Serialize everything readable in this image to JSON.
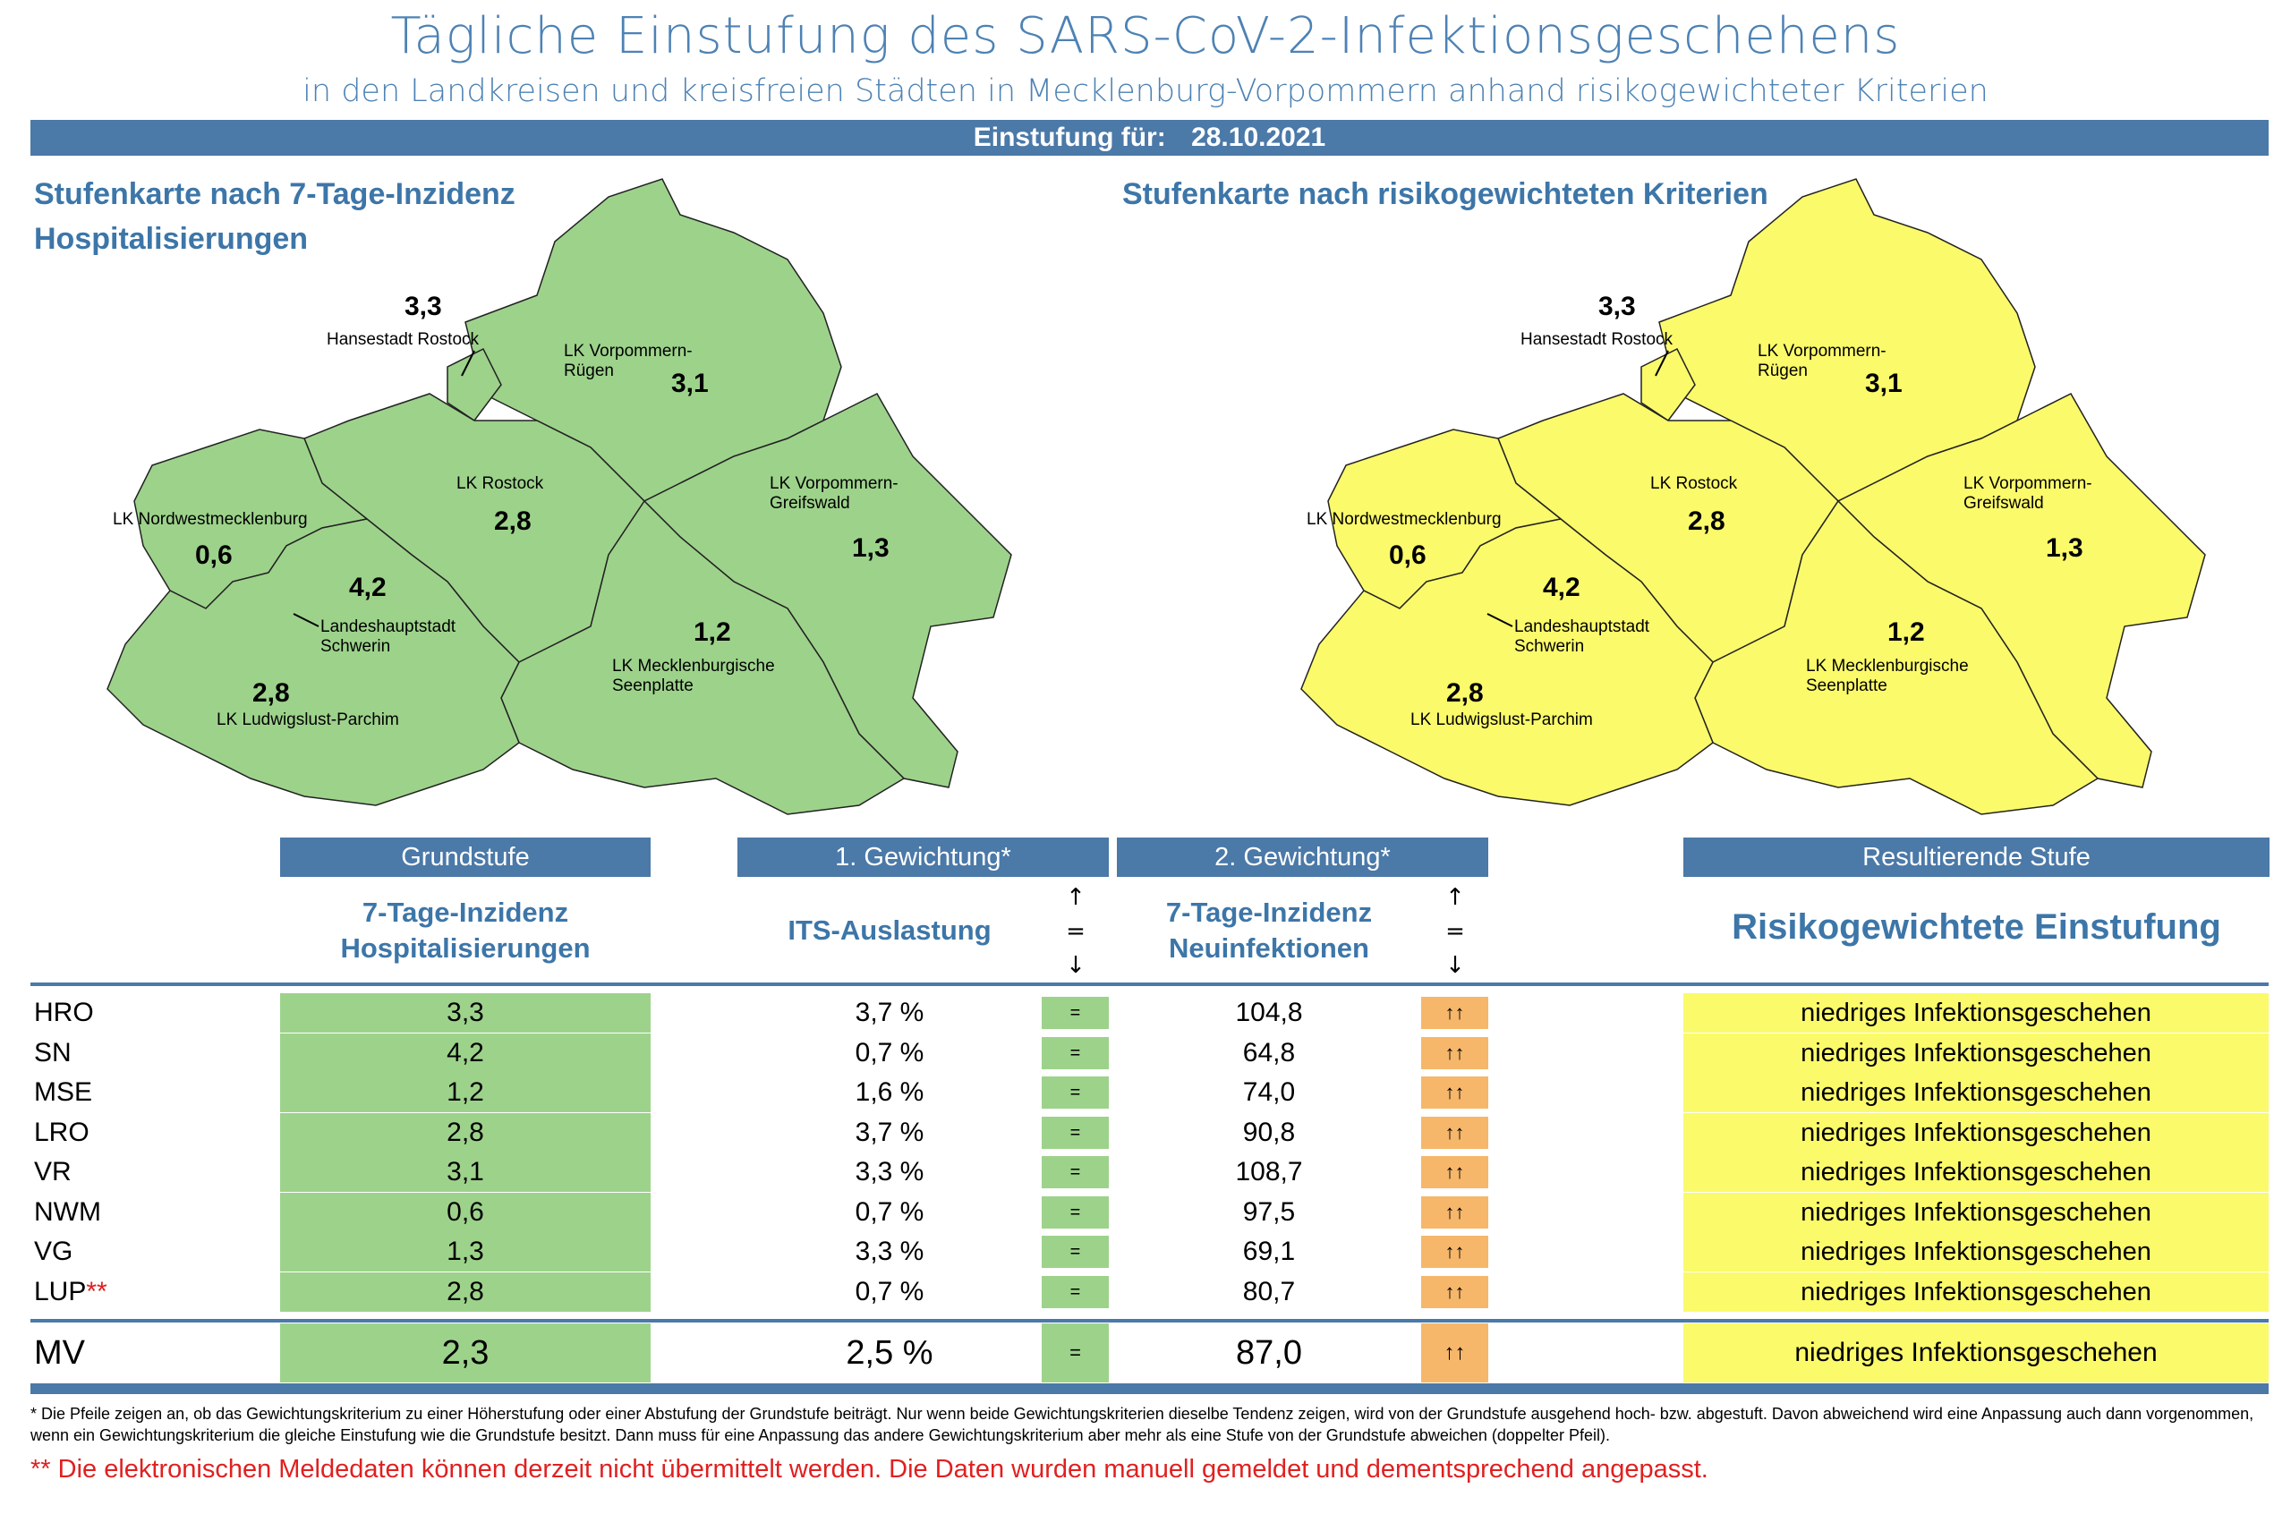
{
  "header": {
    "title": "Tägliche Einstufung des SARS-CoV-2-Infektionsgeschehens",
    "subtitle": "in den Landkreisen und kreisfreien Städten in Mecklenburg-Vorpommern anhand risikogewichteter Kriterien",
    "date_label": "Einstufung für:",
    "date": "28.10.2021"
  },
  "map_left": {
    "title_line1": "Stufenkarte nach 7-Tage-Inzidenz",
    "title_line2": "Hospitalisierungen",
    "fill": "#9dd28b"
  },
  "map_right": {
    "title": "Stufenkarte nach risikogewichteten Kriterien",
    "fill": "#fbfa6b"
  },
  "map_labels": {
    "hro_name": "Hansestadt Rostock",
    "hro_val": "3,3",
    "vr_name1": "LK Vorpommern-",
    "vr_name2": "Rügen",
    "vr_val": "3,1",
    "lro_name": "LK Rostock",
    "lro_val": "2,8",
    "vg_name1": "LK Vorpommern-",
    "vg_name2": "Greifswald",
    "vg_val": "1,3",
    "nwm_name": "LK Nordwestmecklenburg",
    "nwm_val": "0,6",
    "sn_name1": "Landeshauptstadt",
    "sn_name2": "Schwerin",
    "sn_val": "4,2",
    "mse_name1": "LK Mecklenburgische",
    "mse_name2": "Seenplatte",
    "mse_val": "1,2",
    "lup_name": "LK Ludwigslust-Parchim",
    "lup_val": "2,8"
  },
  "table": {
    "group_headers": {
      "grundstufe": "Grundstufe",
      "gew1": "1. Gewichtung*",
      "gew2": "2. Gewichtung*",
      "result": "Resultierende Stufe"
    },
    "col_headers": {
      "hosp_line1": "7-Tage-Inzidenz",
      "hosp_line2": "Hospitalisierungen",
      "its": "ITS-Auslastung",
      "neu_line1": "7-Tage-Inzidenz",
      "neu_line2": "Neuinfektionen",
      "result": "Risikogewichtete Einstufung",
      "arrow_up": "↑",
      "arrow_eq": "=",
      "arrow_down": "↓"
    },
    "rows": [
      {
        "code": "HRO",
        "hosp": "3,3",
        "its": "3,7 %",
        "its_trend": "=",
        "neu": "104,8",
        "neu_trend": "↑↑",
        "result": "niedriges Infektionsgeschehen"
      },
      {
        "code": "SN",
        "hosp": "4,2",
        "its": "0,7 %",
        "its_trend": "=",
        "neu": "64,8",
        "neu_trend": "↑↑",
        "result": "niedriges Infektionsgeschehen"
      },
      {
        "code": "MSE",
        "hosp": "1,2",
        "its": "1,6 %",
        "its_trend": "=",
        "neu": "74,0",
        "neu_trend": "↑↑",
        "result": "niedriges Infektionsgeschehen"
      },
      {
        "code": "LRO",
        "hosp": "2,8",
        "its": "3,7 %",
        "its_trend": "=",
        "neu": "90,8",
        "neu_trend": "↑↑",
        "result": "niedriges Infektionsgeschehen"
      },
      {
        "code": "VR",
        "hosp": "3,1",
        "its": "3,3 %",
        "its_trend": "=",
        "neu": "108,7",
        "neu_trend": "↑↑",
        "result": "niedriges Infektionsgeschehen"
      },
      {
        "code": "NWM",
        "hosp": "0,6",
        "its": "0,7 %",
        "its_trend": "=",
        "neu": "97,5",
        "neu_trend": "↑↑",
        "result": "niedriges Infektionsgeschehen"
      },
      {
        "code": "VG",
        "hosp": "1,3",
        "its": "3,3 %",
        "its_trend": "=",
        "neu": "69,1",
        "neu_trend": "↑↑",
        "result": "niedriges Infektionsgeschehen"
      },
      {
        "code": "LUP",
        "code_mark": "**",
        "hosp": "2,8",
        "its": "0,7 %",
        "its_trend": "=",
        "neu": "80,7",
        "neu_trend": "↑↑",
        "result": "niedriges Infektionsgeschehen"
      }
    ],
    "total": {
      "code": "MV",
      "hosp": "2,3",
      "its": "2,5 %",
      "its_trend": "=",
      "neu": "87,0",
      "neu_trend": "↑↑",
      "result": "niedriges Infektionsgeschehen"
    }
  },
  "footnotes": {
    "star": "* Die Pfeile zeigen an, ob das Gewichtungskriterium zu einer Höherstufung oder einer Abstufung der Grundstufe beiträgt. Nur wenn beide Gewichtungskriterien dieselbe Tendenz zeigen, wird von der Grundstufe ausgehend hoch- bzw. abgestuft.  Davon abweichend wird eine Anpassung auch dann vorgenommen, wenn ein Gewichtungskriterium die gleiche Einstufung wie die Grundstufe besitzt. Dann muss für eine Anpassung das andere Gewichtungskriterium aber mehr als eine Stufe von der Grundstufe abweichen (doppelter Pfeil).",
    "doublestar": "** Die elektronischen Meldedaten können derzeit nicht übermittelt werden. Die Daten wurden manuell gemeldet und dementsprechend angepasst."
  },
  "colors": {
    "accent": "#4b79a8",
    "green": "#9dd28b",
    "yellow": "#fbfa6b",
    "orange": "#f6b76a",
    "red": "#e02020"
  }
}
